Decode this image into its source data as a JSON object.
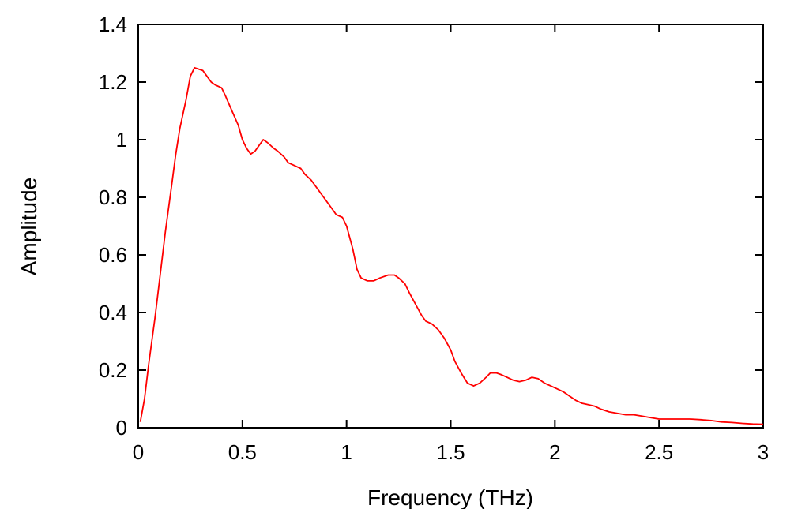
{
  "chart_data": {
    "type": "line",
    "title": "",
    "xlabel": "Frequency (THz)",
    "ylabel": "Amplitude",
    "xlim": [
      0,
      3
    ],
    "ylim": [
      0,
      1.4
    ],
    "x_ticks": [
      "0",
      "0.5",
      "1",
      "1.5",
      "2",
      "2.5",
      "3"
    ],
    "y_ticks": [
      "0",
      "0.2",
      "0.4",
      "0.6",
      "0.8",
      "1",
      "1.2",
      "1.4"
    ],
    "grid": false,
    "legend": "none",
    "series": [
      {
        "color": "#ff0000",
        "x": [
          0.01,
          0.03,
          0.05,
          0.08,
          0.1,
          0.13,
          0.16,
          0.18,
          0.2,
          0.23,
          0.25,
          0.27,
          0.29,
          0.31,
          0.33,
          0.35,
          0.37,
          0.4,
          0.42,
          0.45,
          0.48,
          0.5,
          0.52,
          0.54,
          0.56,
          0.58,
          0.6,
          0.62,
          0.65,
          0.67,
          0.7,
          0.72,
          0.75,
          0.78,
          0.8,
          0.83,
          0.86,
          0.89,
          0.92,
          0.95,
          0.98,
          1.0,
          1.03,
          1.05,
          1.07,
          1.1,
          1.13,
          1.16,
          1.2,
          1.23,
          1.25,
          1.28,
          1.3,
          1.33,
          1.36,
          1.38,
          1.41,
          1.44,
          1.47,
          1.5,
          1.52,
          1.55,
          1.58,
          1.61,
          1.64,
          1.67,
          1.69,
          1.72,
          1.74,
          1.77,
          1.8,
          1.83,
          1.86,
          1.89,
          1.92,
          1.95,
          1.98,
          2.01,
          2.04,
          2.07,
          2.1,
          2.13,
          2.16,
          2.19,
          2.22,
          2.26,
          2.3,
          2.34,
          2.38,
          2.42,
          2.46,
          2.5,
          2.55,
          2.6,
          2.65,
          2.7,
          2.75,
          2.8,
          2.85,
          2.9,
          2.95,
          3.0
        ],
        "y": [
          0.02,
          0.1,
          0.22,
          0.38,
          0.5,
          0.68,
          0.84,
          0.95,
          1.04,
          1.14,
          1.22,
          1.25,
          1.245,
          1.24,
          1.22,
          1.2,
          1.19,
          1.18,
          1.15,
          1.1,
          1.05,
          1.0,
          0.97,
          0.95,
          0.96,
          0.98,
          1.0,
          0.99,
          0.97,
          0.96,
          0.94,
          0.92,
          0.91,
          0.9,
          0.88,
          0.86,
          0.83,
          0.8,
          0.77,
          0.74,
          0.73,
          0.7,
          0.62,
          0.55,
          0.52,
          0.51,
          0.51,
          0.52,
          0.53,
          0.53,
          0.52,
          0.5,
          0.47,
          0.43,
          0.39,
          0.37,
          0.36,
          0.34,
          0.31,
          0.27,
          0.23,
          0.19,
          0.155,
          0.145,
          0.155,
          0.175,
          0.19,
          0.19,
          0.185,
          0.175,
          0.165,
          0.16,
          0.165,
          0.175,
          0.17,
          0.155,
          0.145,
          0.135,
          0.125,
          0.11,
          0.095,
          0.085,
          0.08,
          0.075,
          0.065,
          0.055,
          0.05,
          0.045,
          0.045,
          0.04,
          0.035,
          0.03,
          0.03,
          0.03,
          0.03,
          0.028,
          0.025,
          0.02,
          0.018,
          0.015,
          0.013,
          0.012
        ]
      }
    ]
  }
}
